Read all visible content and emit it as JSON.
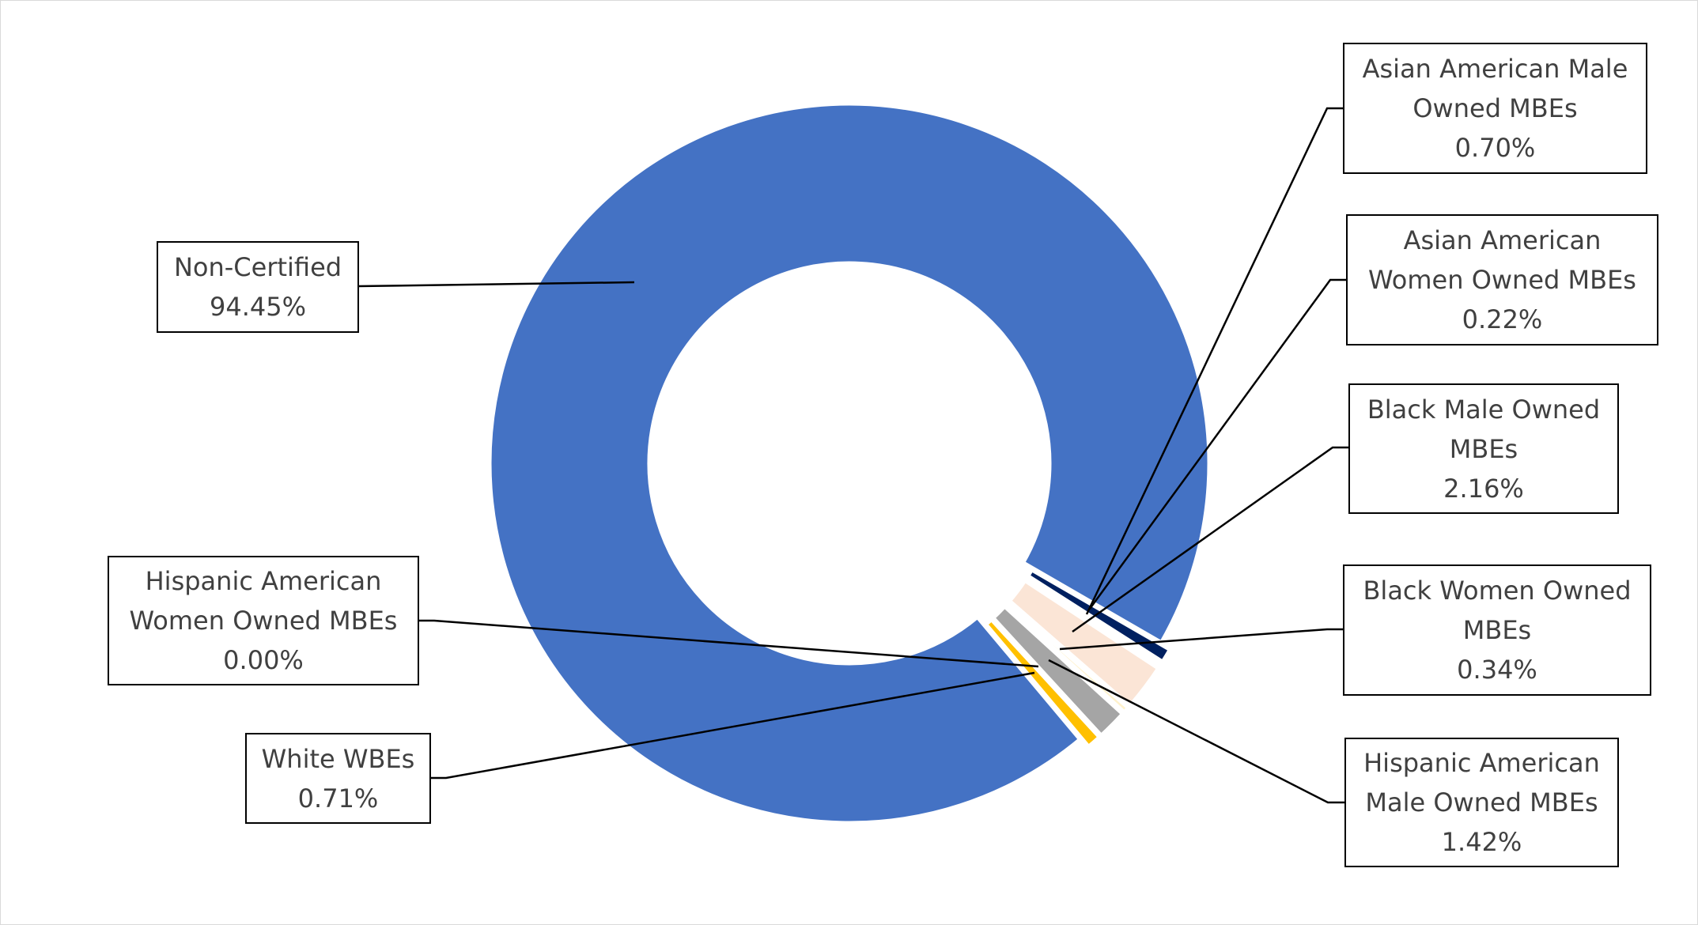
{
  "chart_data": {
    "type": "pie",
    "variant": "doughnut",
    "first_slice_angle_deg": 140,
    "slices": [
      {
        "name": "Non-Certified",
        "label_lines": [
          "Non-Certified"
        ],
        "value": 94.45,
        "display": "94.45%",
        "color": "#4472C4"
      },
      {
        "name": "Asian American Male Owned MBEs",
        "label_lines": [
          "Asian American Male",
          "Owned MBEs"
        ],
        "value": 0.7,
        "display": "0.70%",
        "color": "#002060"
      },
      {
        "name": "Asian American Women Owned MBEs",
        "label_lines": [
          "Asian American",
          "Women Owned MBEs"
        ],
        "value": 0.22,
        "display": "0.22%",
        "color": "#FFFFFF"
      },
      {
        "name": "Black Male Owned MBEs",
        "label_lines": [
          "Black Male Owned",
          "MBEs"
        ],
        "value": 2.16,
        "display": "2.16%",
        "color": "#FBE5D6"
      },
      {
        "name": "Black Women Owned MBEs",
        "label_lines": [
          "Black Women Owned",
          "MBEs"
        ],
        "value": 0.34,
        "display": "0.34%",
        "color": "#FFF2CC"
      },
      {
        "name": "Hispanic American Male Owned MBEs",
        "label_lines": [
          "Hispanic American",
          "Male Owned MBEs"
        ],
        "value": 1.42,
        "display": "1.42%",
        "color": "#A5A5A5"
      },
      {
        "name": "Hispanic American Women Owned MBEs",
        "label_lines": [
          "Hispanic American",
          "Women Owned MBEs"
        ],
        "value": 0.0,
        "display": "0.00%",
        "color": "#7F6000"
      },
      {
        "name": "White WBEs",
        "label_lines": [
          "White WBEs"
        ],
        "value": 0.71,
        "display": "0.71%",
        "color": "#FFC000"
      }
    ],
    "legend": "none",
    "data_labels": "callouts"
  }
}
